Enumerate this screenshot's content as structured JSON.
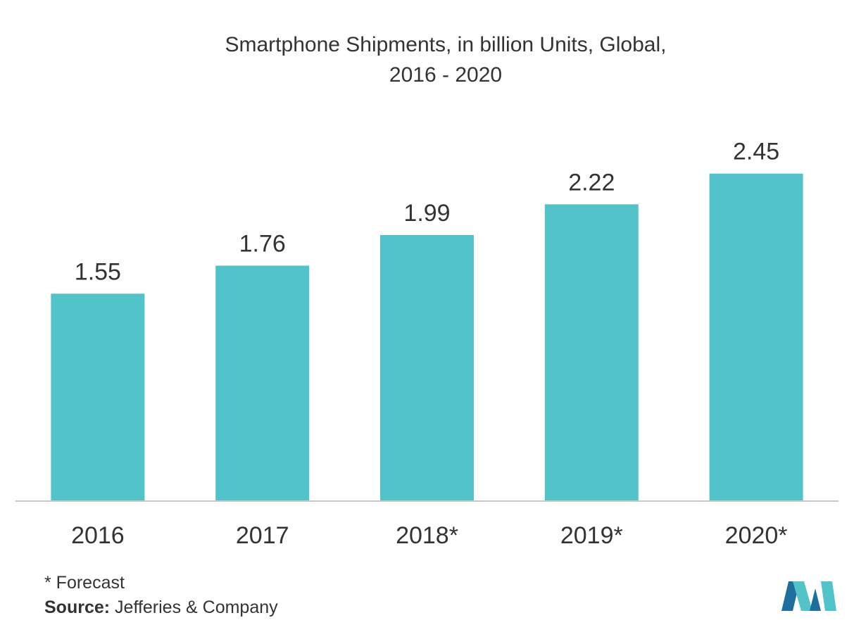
{
  "chart_data": {
    "type": "bar",
    "title_line1": "Smartphone Shipments, in billion Units, Global,",
    "title_line2": "2016 - 2020",
    "categories": [
      "2016",
      "2017",
      "2018*",
      "2019*",
      "2020*"
    ],
    "values": [
      1.55,
      1.76,
      1.99,
      2.22,
      2.45
    ],
    "value_labels": [
      "1.55",
      "1.76",
      "1.99",
      "2.22",
      "2.45"
    ],
    "xlabel": "",
    "ylabel": "",
    "ylim": [
      0,
      2.7
    ],
    "grid": false,
    "legend": "none",
    "bar_color": "#52C3C9",
    "axis_color": "#C8C8C8"
  },
  "footnote": {
    "forecast": "* Forecast",
    "source_label": "Source:",
    "source_text": " Jefferies & Company"
  },
  "logo": {
    "icon": "mordor-intelligence-logo",
    "color_dark": "#1F6E9E",
    "color_light": "#52C3C9"
  }
}
